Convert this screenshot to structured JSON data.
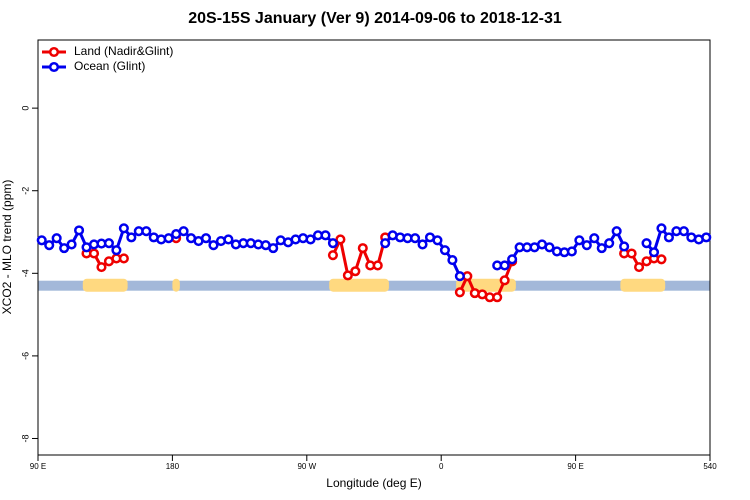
{
  "chart_data": {
    "type": "line",
    "title": "20S-15S January (Ver 9)   2014-09-06 to 2018-12-31",
    "x_label": "Longitude (deg E)",
    "y_label": "XCO2 - MLO trend (ppm)",
    "xlim": [
      90,
      540
    ],
    "xticks": [
      {
        "value": 90,
        "label": "90 E"
      },
      180,
      {
        "value": 270,
        "label": "90 W"
      },
      {
        "value": 360,
        "label": "0"
      },
      {
        "value": 450,
        "label": "90 E"
      },
      540
    ],
    "ylim": [
      -8.4,
      1.65
    ],
    "yticks": [
      0,
      -2,
      -4,
      -6,
      -8
    ],
    "legend": "top-left",
    "strip_y": -4.3,
    "strip_colors": {
      "land": "#ffd980",
      "ocean": "#a3b8d9"
    },
    "x": [
      92.5,
      97.5,
      102.5,
      107.5,
      112.5,
      117.5,
      122.5,
      127.5,
      132.5,
      137.5,
      142.5,
      147.5,
      152.5,
      157.5,
      162.5,
      167.5,
      172.5,
      177.5,
      182.5,
      187.5,
      192.5,
      197.5,
      202.5,
      207.5,
      212.5,
      217.5,
      222.5,
      227.5,
      232.5,
      237.5,
      242.5,
      247.5,
      252.5,
      257.5,
      262.5,
      267.5,
      272.5,
      277.5,
      282.5,
      287.5,
      292.5,
      297.5,
      302.5,
      307.5,
      312.5,
      317.5,
      322.5,
      327.5,
      332.5,
      337.5,
      342.5,
      347.5,
      352.5,
      357.5,
      362.5,
      367.5,
      372.5,
      377.5,
      382.5,
      387.5,
      392.5,
      397.5,
      402.5,
      407.5,
      412.5,
      417.5,
      422.5,
      427.5,
      432.5,
      437.5,
      442.5,
      447.5,
      452.5,
      457.5,
      462.5,
      467.5,
      472.5,
      477.5,
      482.5,
      487.5,
      492.5,
      497.5,
      502.5,
      507.5,
      512.5,
      517.5,
      522.5,
      527.5,
      532.5,
      537.5
    ],
    "series": [
      {
        "name": "Land (Nadir&Glint)",
        "color": "#ee0000",
        "values": [
          null,
          null,
          null,
          null,
          null,
          null,
          -3.52,
          -3.52,
          -3.85,
          -3.71,
          -3.64,
          -3.64,
          null,
          null,
          null,
          null,
          null,
          null,
          -3.15,
          null,
          null,
          null,
          null,
          null,
          null,
          null,
          null,
          null,
          null,
          null,
          null,
          null,
          null,
          null,
          null,
          null,
          null,
          null,
          null,
          -3.56,
          -3.18,
          -4.05,
          -3.95,
          -3.39,
          -3.81,
          -3.81,
          -3.13,
          null,
          null,
          null,
          null,
          null,
          null,
          null,
          null,
          null,
          -4.46,
          -4.07,
          -4.48,
          -4.51,
          -4.58,
          -4.58,
          -4.17,
          -3.71,
          null,
          null,
          null,
          null,
          null,
          null,
          null,
          null,
          null,
          null,
          null,
          null,
          null,
          null,
          -3.52,
          -3.52,
          -3.85,
          -3.71,
          -3.64,
          -3.66,
          null,
          null,
          null,
          null,
          null,
          null
        ]
      },
      {
        "name": "Ocean (Glint)",
        "color": "#0000ee",
        "values": [
          -3.2,
          -3.32,
          -3.15,
          -3.39,
          -3.3,
          -2.96,
          -3.37,
          -3.3,
          -3.28,
          -3.27,
          -3.44,
          -2.91,
          -3.13,
          -2.98,
          -2.98,
          -3.13,
          -3.18,
          -3.15,
          -3.05,
          -2.98,
          -3.15,
          -3.22,
          -3.15,
          -3.32,
          -3.22,
          -3.18,
          -3.3,
          -3.27,
          -3.27,
          -3.3,
          -3.32,
          -3.39,
          -3.2,
          -3.25,
          -3.18,
          -3.15,
          -3.18,
          -3.08,
          -3.08,
          -3.27,
          null,
          null,
          null,
          null,
          null,
          null,
          -3.27,
          -3.08,
          -3.13,
          -3.15,
          -3.15,
          -3.3,
          -3.13,
          -3.2,
          -3.44,
          -3.68,
          -4.07,
          null,
          null,
          null,
          null,
          -3.81,
          -3.81,
          -3.66,
          -3.37,
          -3.37,
          -3.37,
          -3.3,
          -3.37,
          -3.47,
          -3.49,
          -3.47,
          -3.2,
          -3.32,
          -3.15,
          -3.39,
          -3.27,
          -2.98,
          -3.35,
          null,
          null,
          -3.27,
          -3.49,
          -2.91,
          -3.13,
          -2.98,
          -2.98,
          -3.13,
          -3.18,
          -3.13
        ]
      }
    ]
  }
}
